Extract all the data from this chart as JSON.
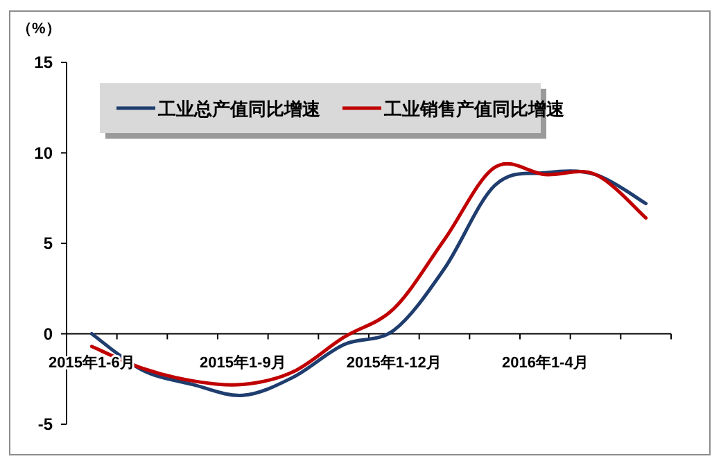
{
  "chart_data": {
    "type": "line",
    "ylabel": "（%）",
    "categories": [
      "2015年1-6月",
      null,
      null,
      "2015年1-9月",
      null,
      null,
      "2015年1-12月",
      null,
      null,
      "2016年1-4月",
      null,
      null
    ],
    "series": [
      {
        "name": "工业总产值同比增速",
        "color": "#1f3d6e",
        "values": [
          0,
          -2.0,
          -2.8,
          -3.4,
          -2.4,
          -0.6,
          0.2,
          3.6,
          8.2,
          8.9,
          8.8,
          7.2
        ]
      },
      {
        "name": "工业销售产值同比增速",
        "color": "#c00000",
        "values": [
          -0.7,
          -1.9,
          -2.6,
          -2.8,
          -2.1,
          -0.2,
          1.4,
          5.2,
          9.2,
          8.8,
          8.8,
          6.4
        ]
      }
    ],
    "ylim": [
      -5,
      15
    ],
    "yticks": [
      -5,
      0,
      5,
      10,
      15
    ],
    "grid": false,
    "legend": "top",
    "line_style": "solid",
    "marker": "none"
  }
}
